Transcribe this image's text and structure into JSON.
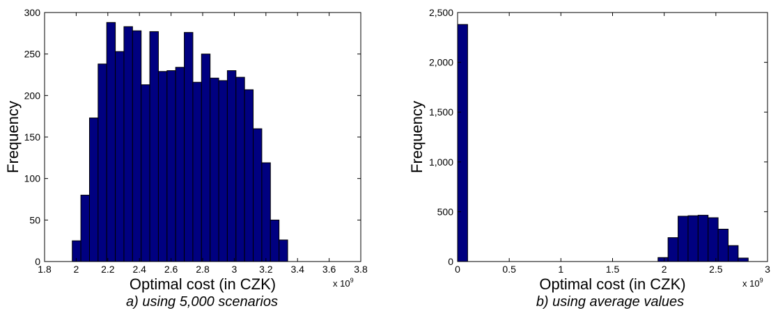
{
  "chart_data": [
    {
      "type": "bar",
      "caption": "a) using 5,000 scenarios",
      "xlabel": "Optimal cost (in CZK)",
      "ylabel": "Frequency",
      "x_exponent_label": "x 10",
      "x_exponent": "9",
      "xlim": [
        1.8,
        3.8
      ],
      "ylim": [
        0,
        300
      ],
      "xticks": [
        1.8,
        2,
        2.2,
        2.4,
        2.6,
        2.8,
        3,
        3.2,
        3.4,
        3.6,
        3.8
      ],
      "xtick_labels": [
        "1.8",
        "2",
        "2.2",
        "2.4",
        "2.6",
        "2.8",
        "3",
        "3.2",
        "3.4",
        "3.6",
        "3.8"
      ],
      "yticks": [
        0,
        50,
        100,
        150,
        200,
        250,
        300
      ],
      "ytick_labels": [
        "0",
        "50",
        "100",
        "150",
        "200",
        "250",
        "300"
      ],
      "bin_start": 1.975,
      "bin_width": 0.0545,
      "values": [
        25,
        80,
        173,
        238,
        288,
        253,
        283,
        278,
        213,
        277,
        229,
        230,
        234,
        276,
        216,
        250,
        221,
        218,
        230,
        222,
        207,
        160,
        119,
        50,
        26
      ],
      "bar_color": "#000080",
      "edge_color": "#000000"
    },
    {
      "type": "bar",
      "caption": "b) using average values",
      "xlabel": "Optimal cost (in CZK)",
      "ylabel": "Frequency",
      "x_exponent_label": "x 10",
      "x_exponent": "9",
      "xlim": [
        0,
        3
      ],
      "ylim": [
        0,
        2500
      ],
      "xticks": [
        0,
        0.5,
        1,
        1.5,
        2,
        2.5,
        3
      ],
      "xtick_labels": [
        "0",
        "0.5",
        "1",
        "1.5",
        "2",
        "2.5",
        "3"
      ],
      "yticks": [
        0,
        500,
        1000,
        1500,
        2000,
        2500
      ],
      "ytick_labels": [
        "0",
        "500",
        "1,000",
        "1,500",
        "2,000",
        "2,500"
      ],
      "bin_start": 0,
      "bin_width": 0.097,
      "values": [
        2380,
        0,
        0,
        0,
        0,
        0,
        0,
        0,
        0,
        0,
        0,
        0,
        0,
        0,
        0,
        0,
        0,
        0,
        0,
        0,
        40,
        240,
        455,
        460,
        465,
        440,
        325,
        160,
        35
      ],
      "bar_color": "#000080",
      "edge_color": "#000000"
    }
  ]
}
